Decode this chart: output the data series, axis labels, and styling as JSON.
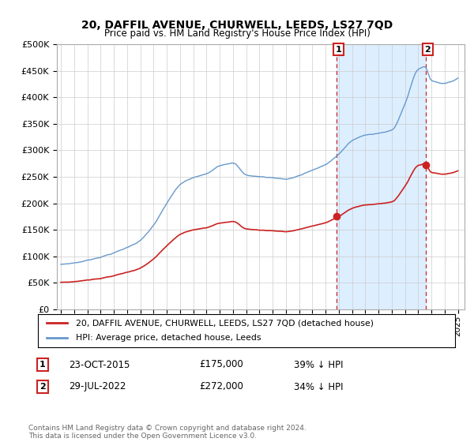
{
  "title": "20, DAFFIL AVENUE, CHURWELL, LEEDS, LS27 7QD",
  "subtitle": "Price paid vs. HM Land Registry's House Price Index (HPI)",
  "ylim": [
    0,
    500000
  ],
  "yticks": [
    0,
    50000,
    100000,
    150000,
    200000,
    250000,
    300000,
    350000,
    400000,
    450000,
    500000
  ],
  "ytick_labels": [
    "£0",
    "£50K",
    "£100K",
    "£150K",
    "£200K",
    "£250K",
    "£300K",
    "£350K",
    "£400K",
    "£450K",
    "£500K"
  ],
  "hpi_color": "#6699cc",
  "price_color": "#cc2222",
  "shade_color": "#ddeeff",
  "marker1_date": 2015.82,
  "marker1_price": 175000,
  "marker1_label": "1",
  "marker2_date": 2022.57,
  "marker2_price": 272000,
  "marker2_label": "2",
  "legend_line1": "20, DAFFIL AVENUE, CHURWELL, LEEDS, LS27 7QD (detached house)",
  "legend_line2": "HPI: Average price, detached house, Leeds",
  "note1_num": "1",
  "note1_date": "23-OCT-2015",
  "note1_price": "£175,000",
  "note1_pct": "39% ↓ HPI",
  "note2_num": "2",
  "note2_date": "29-JUL-2022",
  "note2_price": "£272,000",
  "note2_pct": "34% ↓ HPI",
  "footnote": "Contains HM Land Registry data © Crown copyright and database right 2024.\nThis data is licensed under the Open Government Licence v3.0.",
  "background_color": "#ffffff",
  "grid_color": "#cccccc",
  "xlim_left": 1994.7,
  "xlim_right": 2025.5
}
